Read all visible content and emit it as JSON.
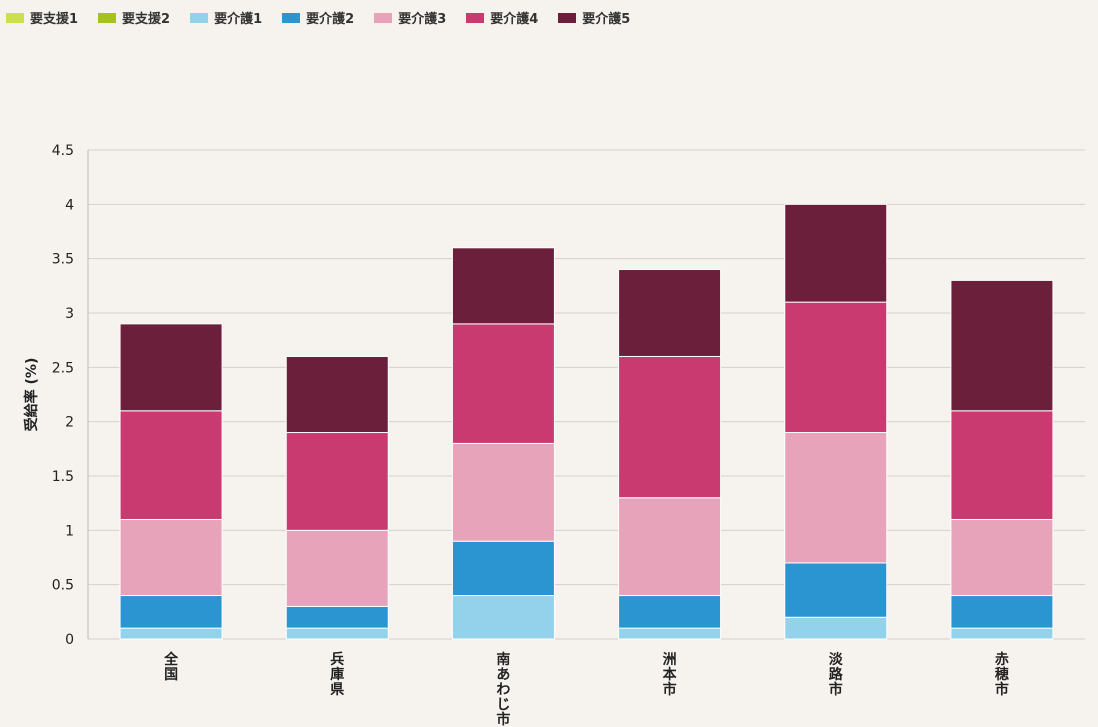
{
  "chart_data": {
    "type": "bar",
    "stacked": true,
    "title": "",
    "ylabel": "受給率 (%)",
    "ylim": [
      0,
      4.5
    ],
    "yticks": [
      "0",
      "0.5",
      "1",
      "1.5",
      "2",
      "2.5",
      "3",
      "3.5",
      "4",
      "4.5"
    ],
    "grid": true,
    "legend_position": "top-left",
    "categories": [
      "全国",
      "兵庫県",
      "南あわじ市",
      "洲本市",
      "淡路市",
      "赤穂市"
    ],
    "series": [
      {
        "name": "要支援1",
        "color": "#cde04a",
        "values": [
          0,
          0,
          0,
          0,
          0,
          0
        ]
      },
      {
        "name": "要支援2",
        "color": "#a6c21d",
        "values": [
          0,
          0,
          0,
          0,
          0,
          0
        ]
      },
      {
        "name": "要介護1",
        "color": "#94d1ea",
        "values": [
          0.1,
          0.1,
          0.4,
          0.1,
          0.2,
          0.1
        ]
      },
      {
        "name": "要介護2",
        "color": "#2a95d0",
        "values": [
          0.3,
          0.2,
          0.5,
          0.3,
          0.5,
          0.3
        ]
      },
      {
        "name": "要介護3",
        "color": "#e6a3b9",
        "values": [
          0.7,
          0.7,
          0.9,
          0.9,
          1.2,
          0.7
        ]
      },
      {
        "name": "要介護4",
        "color": "#c83a70",
        "values": [
          1.0,
          0.9,
          1.1,
          1.3,
          1.2,
          1.0
        ]
      },
      {
        "name": "要介護5",
        "color": "#6c1f3b",
        "values": [
          0.8,
          0.7,
          0.7,
          0.8,
          0.9,
          1.2
        ]
      }
    ]
  }
}
